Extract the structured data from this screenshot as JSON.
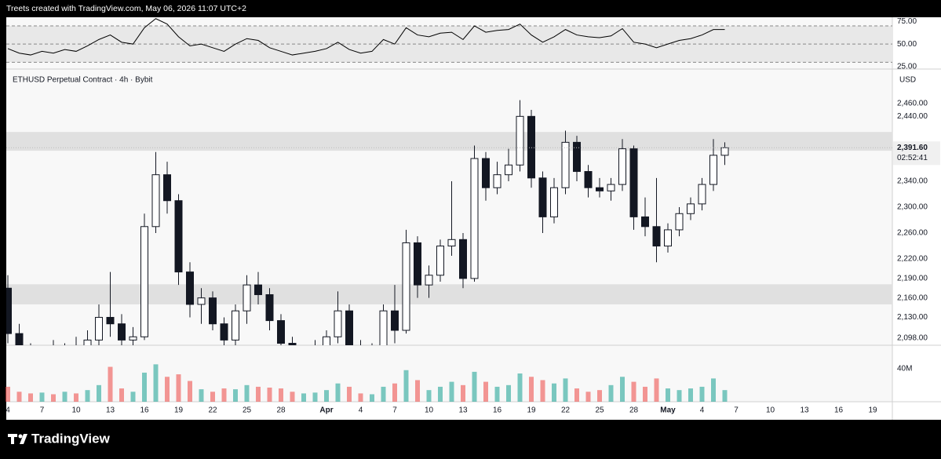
{
  "header": "Treets created with TradingView.com, May 06, 2026 11:07 UTC+2",
  "brand": "TradingView",
  "chart_data": {
    "type": "candlestick",
    "legend": "ETHUSD Perpetual Contract · 4h · Bybit",
    "currency": "USD",
    "candle_color": "#131722",
    "x": [
      "Mar 4",
      "Mar 5",
      "Mar 6",
      "Mar 7",
      "Mar 8",
      "Mar 9",
      "Mar 10",
      "Mar 11",
      "Mar 12",
      "Mar 13",
      "Mar 14",
      "Mar 15",
      "Mar 16",
      "Mar 17",
      "Mar 18",
      "Mar 19",
      "Mar 20",
      "Mar 21",
      "Mar 22",
      "Mar 23",
      "Mar 24",
      "Mar 25",
      "Mar 26",
      "Mar 27",
      "Mar 28",
      "Mar 29",
      "Mar 30",
      "Mar 31",
      "Apr 1",
      "Apr 2",
      "Apr 3",
      "Apr 4",
      "Apr 5",
      "Apr 6",
      "Apr 7",
      "Apr 8",
      "Apr 9",
      "Apr 10",
      "Apr 11",
      "Apr 12",
      "Apr 13",
      "Apr 14",
      "Apr 15",
      "Apr 16",
      "Apr 17",
      "Apr 18",
      "Apr 19",
      "Apr 20",
      "Apr 21",
      "Apr 22",
      "Apr 23",
      "Apr 24",
      "Apr 25",
      "Apr 26",
      "Apr 27",
      "Apr 28",
      "Apr 29",
      "Apr 30",
      "May 1",
      "May 2",
      "May 3",
      "May 4",
      "May 5",
      "May 6"
    ],
    "open": [
      2175,
      2105,
      2075,
      2065,
      2080,
      2060,
      2085,
      2070,
      2095,
      2130,
      2120,
      2095,
      2100,
      2270,
      2350,
      2310,
      2200,
      2150,
      2160,
      2120,
      2095,
      2140,
      2180,
      2165,
      2125,
      2090,
      2060,
      2075,
      2080,
      2100,
      2140,
      2085,
      2070,
      2080,
      2140,
      2110,
      2245,
      2180,
      2195,
      2240,
      2250,
      2190,
      2375,
      2330,
      2350,
      2365,
      2440,
      2345,
      2285,
      2330,
      2400,
      2355,
      2330,
      2325,
      2335,
      2390,
      2285,
      2270,
      2240,
      2265,
      2290,
      2305,
      2335,
      2380
    ],
    "high": [
      2195,
      2120,
      2090,
      2085,
      2095,
      2090,
      2100,
      2110,
      2150,
      2200,
      2135,
      2115,
      2290,
      2385,
      2370,
      2320,
      2215,
      2175,
      2170,
      2130,
      2150,
      2195,
      2200,
      2175,
      2135,
      2100,
      2085,
      2095,
      2110,
      2170,
      2150,
      2095,
      2090,
      2150,
      2180,
      2265,
      2255,
      2210,
      2250,
      2340,
      2260,
      2395,
      2385,
      2370,
      2390,
      2465,
      2450,
      2355,
      2345,
      2418,
      2410,
      2365,
      2345,
      2345,
      2405,
      2395,
      2315,
      2345,
      2275,
      2300,
      2315,
      2345,
      2405,
      2400
    ],
    "low": [
      2090,
      2060,
      2050,
      2040,
      2055,
      2045,
      2060,
      2055,
      2080,
      2100,
      2080,
      2070,
      2095,
      2260,
      2290,
      2180,
      2130,
      2120,
      2110,
      2080,
      2085,
      2120,
      2150,
      2110,
      2080,
      2050,
      2040,
      2055,
      2065,
      2090,
      2075,
      2060,
      2055,
      2075,
      2090,
      2105,
      2160,
      2160,
      2185,
      2225,
      2175,
      2185,
      2310,
      2320,
      2340,
      2355,
      2330,
      2260,
      2275,
      2320,
      2340,
      2315,
      2315,
      2310,
      2325,
      2265,
      2255,
      2215,
      2230,
      2255,
      2280,
      2295,
      2325,
      2365
    ],
    "close": [
      2105,
      2075,
      2065,
      2080,
      2060,
      2085,
      2070,
      2095,
      2130,
      2120,
      2095,
      2100,
      2270,
      2350,
      2310,
      2200,
      2150,
      2160,
      2120,
      2095,
      2140,
      2180,
      2165,
      2125,
      2090,
      2060,
      2075,
      2080,
      2100,
      2140,
      2085,
      2070,
      2080,
      2140,
      2110,
      2245,
      2180,
      2195,
      2240,
      2250,
      2190,
      2375,
      2330,
      2350,
      2365,
      2440,
      2345,
      2285,
      2330,
      2400,
      2355,
      2330,
      2325,
      2335,
      2390,
      2285,
      2270,
      2240,
      2265,
      2290,
      2305,
      2335,
      2380,
      2391.6
    ],
    "ylim": [
      2087,
      2513
    ],
    "yticks": [
      {
        "value": 2460,
        "label": "2,460.00"
      },
      {
        "value": 2440,
        "label": "2,440.00"
      },
      {
        "value": 2340,
        "label": "2,340.00"
      },
      {
        "value": 2300,
        "label": "2,300.00"
      },
      {
        "value": 2260,
        "label": "2,260.00"
      },
      {
        "value": 2220,
        "label": "2,220.00"
      },
      {
        "value": 2190,
        "label": "2,190.00"
      },
      {
        "value": 2160,
        "label": "2,160.00"
      },
      {
        "value": 2130,
        "label": "2,130.00"
      },
      {
        "value": 2098,
        "label": "2,098.00"
      }
    ],
    "zones": [
      {
        "from": 2387,
        "to": 2416
      },
      {
        "from": 2150,
        "to": 2181
      }
    ],
    "zone_color": "#e0e0e0",
    "last_price": {
      "value": 2391.6,
      "label": "2,391.60"
    },
    "countdown": "02:52:41",
    "xticks": [
      {
        "value": "Mar 4",
        "label": "4"
      },
      {
        "value": "Mar 7",
        "label": "7"
      },
      {
        "value": "Mar 10",
        "label": "10"
      },
      {
        "value": "Mar 13",
        "label": "13"
      },
      {
        "value": "Mar 16",
        "label": "16"
      },
      {
        "value": "Mar 19",
        "label": "19"
      },
      {
        "value": "Mar 22",
        "label": "22"
      },
      {
        "value": "Mar 25",
        "label": "25"
      },
      {
        "value": "Mar 28",
        "label": "28"
      },
      {
        "value": "Apr 1",
        "label": "Apr"
      },
      {
        "value": "Apr 4",
        "label": "4"
      },
      {
        "value": "Apr 7",
        "label": "7"
      },
      {
        "value": "Apr 10",
        "label": "10"
      },
      {
        "value": "Apr 13",
        "label": "13"
      },
      {
        "value": "Apr 16",
        "label": "16"
      },
      {
        "value": "Apr 19",
        "label": "19"
      },
      {
        "value": "Apr 22",
        "label": "22"
      },
      {
        "value": "Apr 25",
        "label": "25"
      },
      {
        "value": "Apr 28",
        "label": "28"
      },
      {
        "value": "May 1",
        "label": "May"
      },
      {
        "value": "May 4",
        "label": "4"
      },
      {
        "value": "May 7",
        "label": "7"
      },
      {
        "value": "May 10",
        "label": "10"
      },
      {
        "value": "May 13",
        "label": "13"
      },
      {
        "value": "May 16",
        "label": "16"
      },
      {
        "value": "May 19",
        "label": "19"
      }
    ],
    "rsi": {
      "color": "#000000",
      "band_color": "#e8e8e8",
      "values": [
        45,
        40,
        38,
        42,
        40,
        44,
        42,
        48,
        55,
        60,
        52,
        50,
        68,
        78,
        72,
        58,
        48,
        50,
        46,
        42,
        50,
        56,
        54,
        46,
        42,
        38,
        40,
        42,
        45,
        52,
        44,
        40,
        42,
        55,
        50,
        68,
        60,
        58,
        62,
        63,
        55,
        70,
        63,
        65,
        66,
        72,
        60,
        52,
        58,
        66,
        60,
        58,
        57,
        59,
        67,
        52,
        50,
        46,
        50,
        54,
        56,
        60,
        66,
        66
      ],
      "ylim": [
        22.5,
        79.5
      ],
      "yticks": [
        {
          "value": 75,
          "label": "75.00"
        },
        {
          "value": 50,
          "label": "50.00"
        },
        {
          "value": 25,
          "label": "25.00"
        }
      ],
      "bands": [
        30,
        50,
        70
      ]
    },
    "volume": {
      "up_color": "#26a69a",
      "down_color": "#ef5350",
      "values": [
        18000000,
        12000000,
        10000000,
        11000000,
        9000000,
        12000000,
        10000000,
        14000000,
        20000000,
        42000000,
        16000000,
        12000000,
        35000000,
        45000000,
        30000000,
        33000000,
        25000000,
        15000000,
        12000000,
        16000000,
        15000000,
        20000000,
        18000000,
        17000000,
        16000000,
        12000000,
        10000000,
        11000000,
        14000000,
        22000000,
        18000000,
        10000000,
        9000000,
        18000000,
        22000000,
        38000000,
        26000000,
        14000000,
        18000000,
        24000000,
        20000000,
        36000000,
        24000000,
        18000000,
        20000000,
        34000000,
        30000000,
        26000000,
        22000000,
        28000000,
        16000000,
        12000000,
        14000000,
        20000000,
        30000000,
        24000000,
        18000000,
        28000000,
        16000000,
        14000000,
        16000000,
        18000000,
        28000000,
        14000000
      ],
      "ylim": [
        0,
        68000000
      ],
      "yticks": [
        {
          "value": 40000000,
          "label": "40M"
        }
      ]
    }
  }
}
